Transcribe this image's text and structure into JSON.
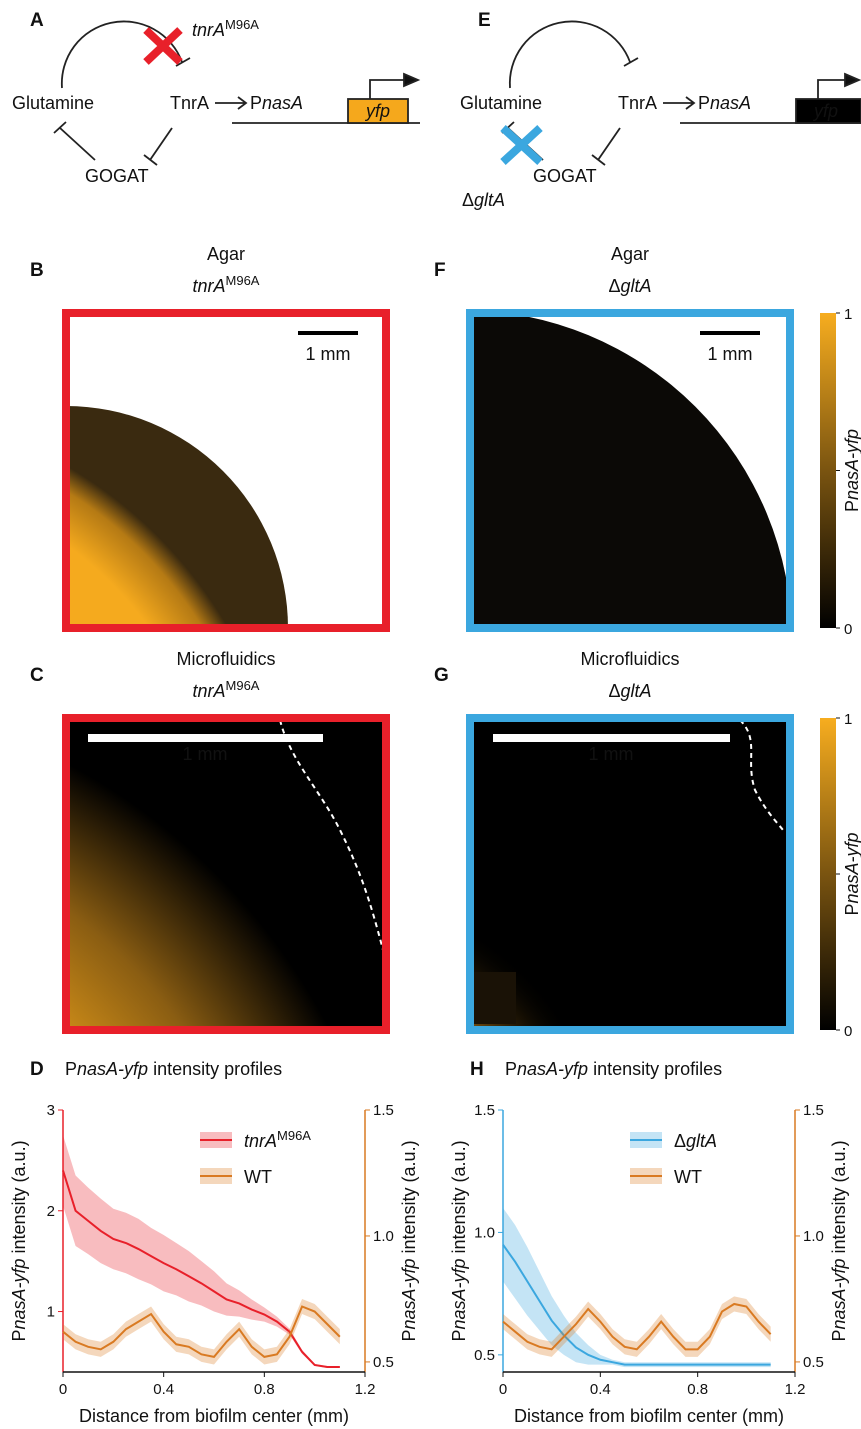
{
  "panels": {
    "A": {
      "letter": "A",
      "nodes": [
        "Glutamine",
        "TnrA",
        "GOGAT"
      ],
      "promoter": [
        "P",
        "nasA"
      ],
      "gene": "yfp",
      "mutation": {
        "gene": "tnrA",
        "superscript": "M96A"
      }
    },
    "E": {
      "letter": "E",
      "nodes": [
        "Glutamine",
        "TnrA",
        "GOGAT"
      ],
      "promoter": [
        "P",
        "nasA"
      ],
      "gene": "yfp",
      "mutation": [
        "Δ",
        "gltA"
      ]
    },
    "B": {
      "letter": "B",
      "title": "Agar",
      "subtitle": {
        "gene": "tnrA",
        "superscript": "M96A"
      },
      "scale_bar": "1 mm"
    },
    "F": {
      "letter": "F",
      "title": "Agar",
      "subtitle": [
        "Δ",
        "gltA"
      ],
      "scale_bar": "1 mm",
      "colorbar": {
        "lim": [
          0,
          1
        ],
        "ticks": [
          0,
          1
        ],
        "label": [
          "P",
          "nasA-yfp"
        ]
      }
    },
    "C": {
      "letter": "C",
      "title": "Microfluidics",
      "subtitle": {
        "gene": "tnrA",
        "superscript": "M96A"
      },
      "scale_bar": "1 mm"
    },
    "G": {
      "letter": "G",
      "title": "Microfluidics",
      "subtitle": [
        "Δ",
        "gltA"
      ],
      "scale_bar": "1 mm",
      "colorbar": {
        "lim": [
          0,
          1
        ],
        "ticks": [
          0,
          1
        ],
        "label": [
          "P",
          "nasA-yfp"
        ]
      }
    },
    "D": {
      "letter": "D"
    },
    "H": {
      "letter": "H"
    }
  },
  "chart_data": [
    {
      "type": "line",
      "title": [
        "P",
        "nasA-yfp",
        " intensity profiles"
      ],
      "x_label": "Distance from biofilm center (mm)",
      "y_label": [
        "P",
        "nasA-yfp",
        " intensity (a.u.)"
      ],
      "y2_label": [
        "P",
        "nasA-yfp",
        " intensity (a.u.)"
      ],
      "xlim": [
        0,
        1.2
      ],
      "xticks": [
        0,
        0.4,
        0.8,
        1.2
      ],
      "ylim": [
        0.4,
        3
      ],
      "yticks": [
        1,
        2,
        3
      ],
      "y2lim": [
        0.46,
        1.5
      ],
      "y2ticks": [
        0.5,
        {
          "value": 1,
          "label": "1.0"
        },
        1.5
      ],
      "legend": "upper right",
      "x": [
        0,
        0.05,
        0.1,
        0.15,
        0.2,
        0.25,
        0.3,
        0.35,
        0.4,
        0.45,
        0.5,
        0.55,
        0.6,
        0.65,
        0.7,
        0.75,
        0.8,
        0.85,
        0.9,
        0.95,
        1.0,
        1.05,
        1.1
      ],
      "series": [
        {
          "name": {
            "gene": "tnrA",
            "superscript": "M96A"
          },
          "color": "#e8202a",
          "axis": "y",
          "values": [
            2.4,
            2.0,
            1.9,
            1.8,
            1.72,
            1.68,
            1.62,
            1.55,
            1.48,
            1.42,
            1.35,
            1.28,
            1.2,
            1.12,
            1.08,
            1.02,
            0.97,
            0.9,
            0.8,
            0.6,
            0.47,
            0.45,
            0.45
          ],
          "errors": [
            0.35,
            0.35,
            0.33,
            0.32,
            0.3,
            0.3,
            0.3,
            0.28,
            0.28,
            0.26,
            0.25,
            0.22,
            0.2,
            0.16,
            0.13,
            0.1,
            0.07,
            0.05,
            0.03,
            0.02,
            0.01,
            0.01,
            0.01
          ]
        },
        {
          "name": "WT",
          "color": "#d97a22",
          "axis": "y2",
          "values": [
            0.62,
            0.58,
            0.56,
            0.55,
            0.58,
            0.63,
            0.66,
            0.69,
            0.62,
            0.57,
            0.56,
            0.53,
            0.52,
            0.58,
            0.63,
            0.56,
            0.52,
            0.53,
            0.6,
            0.72,
            0.7,
            0.65,
            0.6
          ],
          "errors": [
            0.03,
            0.03,
            0.03,
            0.03,
            0.03,
            0.03,
            0.03,
            0.03,
            0.03,
            0.03,
            0.03,
            0.03,
            0.03,
            0.03,
            0.03,
            0.03,
            0.03,
            0.03,
            0.03,
            0.03,
            0.03,
            0.03,
            0.03
          ]
        }
      ]
    },
    {
      "type": "line",
      "title": [
        "P",
        "nasA-yfp",
        " intensity profiles"
      ],
      "x_label": "Distance from biofilm center (mm)",
      "y_label": [
        "P",
        "nasA-yfp",
        " intensity (a.u.)"
      ],
      "y2_label": [
        "P",
        "nasA-yfp",
        " intensity (a.u.)"
      ],
      "xlim": [
        0,
        1.2
      ],
      "xticks": [
        0,
        0.4,
        0.8,
        1.2
      ],
      "ylim": [
        0.43,
        1.5
      ],
      "yticks": [
        0.5,
        {
          "value": 1,
          "label": "1.0"
        },
        1.5
      ],
      "y2lim": [
        0.46,
        1.5
      ],
      "y2ticks": [
        0.5,
        {
          "value": 1,
          "label": "1.0"
        },
        1.5
      ],
      "legend": "upper right",
      "x": [
        0,
        0.05,
        0.1,
        0.15,
        0.2,
        0.25,
        0.3,
        0.35,
        0.4,
        0.45,
        0.5,
        0.55,
        0.6,
        0.65,
        0.7,
        0.75,
        0.8,
        0.85,
        0.9,
        0.95,
        1.0,
        1.05,
        1.1
      ],
      "series": [
        {
          "name": [
            "Δ",
            "gltA"
          ],
          "color": "#3ba7df",
          "axis": "y",
          "values": [
            0.95,
            0.88,
            0.8,
            0.72,
            0.64,
            0.58,
            0.53,
            0.5,
            0.48,
            0.47,
            0.46,
            0.46,
            0.46,
            0.46,
            0.46,
            0.46,
            0.46,
            0.46,
            0.46,
            0.46,
            0.46,
            0.46,
            0.46
          ],
          "errors": [
            0.15,
            0.15,
            0.14,
            0.12,
            0.1,
            0.08,
            0.06,
            0.04,
            0.02,
            0.01,
            0.01,
            0.01,
            0.01,
            0.01,
            0.01,
            0.01,
            0.01,
            0.01,
            0.01,
            0.01,
            0.01,
            0.01,
            0.01
          ]
        },
        {
          "name": "WT",
          "color": "#d97a22",
          "axis": "y2",
          "values": [
            0.66,
            0.62,
            0.58,
            0.56,
            0.55,
            0.6,
            0.65,
            0.71,
            0.66,
            0.6,
            0.56,
            0.55,
            0.6,
            0.66,
            0.6,
            0.55,
            0.55,
            0.6,
            0.7,
            0.73,
            0.72,
            0.66,
            0.61
          ],
          "errors": [
            0.03,
            0.03,
            0.03,
            0.03,
            0.03,
            0.03,
            0.03,
            0.03,
            0.03,
            0.03,
            0.03,
            0.03,
            0.03,
            0.03,
            0.03,
            0.03,
            0.03,
            0.03,
            0.03,
            0.03,
            0.03,
            0.03,
            0.03
          ]
        }
      ]
    }
  ]
}
